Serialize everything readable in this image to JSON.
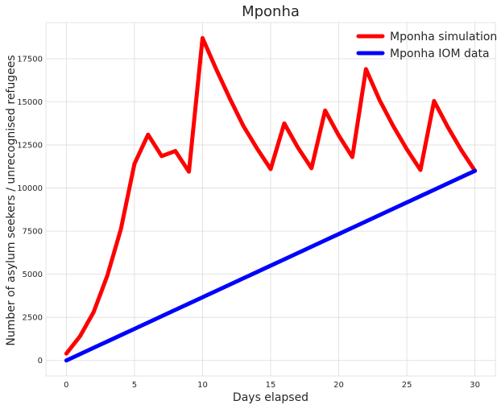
{
  "chart_data": {
    "type": "line",
    "title": "Mponha",
    "xlabel": "Days elapsed",
    "ylabel": "Number of asylum seekers / unrecognised refugees",
    "xlim": [
      -1.5,
      31.5
    ],
    "ylim": [
      -900,
      19600
    ],
    "xticks": [
      0,
      5,
      10,
      15,
      20,
      25,
      30
    ],
    "yticks": [
      0,
      2500,
      5000,
      7500,
      10000,
      12500,
      15000,
      17500
    ],
    "grid": true,
    "legend_position": "top-right",
    "x": [
      0,
      1,
      2,
      3,
      4,
      5,
      6,
      7,
      8,
      9,
      10,
      11,
      12,
      13,
      14,
      15,
      16,
      17,
      18,
      19,
      20,
      21,
      22,
      23,
      24,
      25,
      26,
      27,
      28,
      29,
      30
    ],
    "series": [
      {
        "name": "Mponha simulation",
        "color": "#ff0000",
        "values": [
          400,
          1400,
          2800,
          4900,
          7600,
          11400,
          13100,
          11850,
          12150,
          10950,
          18700,
          16900,
          15200,
          13600,
          12300,
          11100,
          13750,
          12350,
          11150,
          14500,
          13050,
          11800,
          16900,
          15100,
          13600,
          12250,
          11050,
          15050,
          13550,
          12200,
          11000
        ]
      },
      {
        "name": "Mponha IOM data",
        "color": "#0000ff",
        "values": [
          0,
          366.7,
          733.3,
          1100,
          1466.7,
          1833.3,
          2200,
          2566.7,
          2933.3,
          3300,
          3666.7,
          4033.3,
          4400,
          4766.7,
          5133.3,
          5500,
          5866.7,
          6233.3,
          6600,
          6966.7,
          7333.3,
          7700,
          8066.7,
          8433.3,
          8800,
          9166.7,
          9533.3,
          9900,
          10266.7,
          10633.3,
          11000
        ]
      }
    ]
  }
}
